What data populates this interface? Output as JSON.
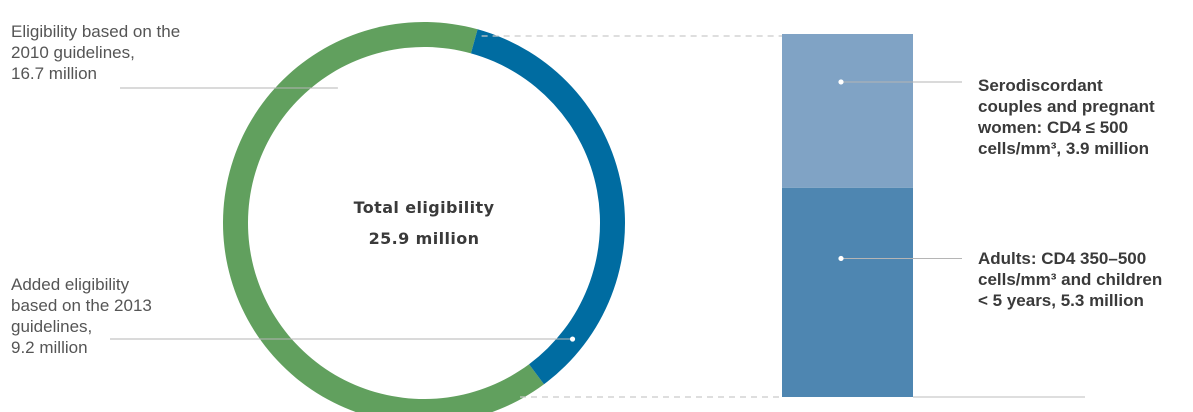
{
  "chart_data": {
    "type": "donut-with-breakdown-bar",
    "center_label": {
      "title": "Total eligibility",
      "value": "25.9 million"
    },
    "donut": {
      "slices": [
        {
          "label": "Eligibility based on the\n2010 guidelines,\n16.7 million",
          "value": 16.7,
          "color": "#61a05e"
        },
        {
          "label": "Added eligibility\nbased on the 2013\nguidelines,\n9.2 million",
          "value": 9.2,
          "color": "#006ca1"
        }
      ]
    },
    "bar": {
      "segments": [
        {
          "label": "Serodiscordant\ncouples and pregnant\nwomen: CD4 ≤ 500\ncells/mm³, 3.9 million",
          "value": 3.9,
          "color": "#80a3c5"
        },
        {
          "label": "Adults: CD4 350–500\ncells/mm³ and children\n< 5 years, 5.3 million",
          "value": 5.3,
          "color": "#4e86b1"
        }
      ]
    }
  }
}
